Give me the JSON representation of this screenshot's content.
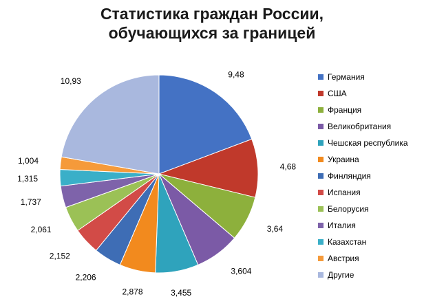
{
  "chart_data": {
    "type": "pie",
    "title_lines": [
      "Статистика граждан России,",
      "обучающихся за границей"
    ],
    "categories": [
      "Германия",
      "США",
      "Франция",
      "Великобритания",
      "Чешская республика",
      "Украина",
      "Финляндия",
      "Испания",
      "Белорусия",
      "Италия",
      "Казахстан",
      "Австрия",
      "Другие"
    ],
    "values": [
      9.48,
      4.68,
      3.64,
      3.604,
      3.455,
      2.878,
      2.206,
      2.152,
      2.061,
      1.737,
      1.315,
      1.004,
      10.93
    ],
    "value_labels": [
      "9,48",
      "4,68",
      "3,64",
      "3,604",
      "3,455",
      "2,878",
      "2,206",
      "2,152",
      "2,061",
      "1,737",
      "1,315",
      "1,004",
      "10,93"
    ],
    "colors": [
      "#4472C4",
      "#C0392B",
      "#8DB03C",
      "#7B5AA6",
      "#2FA3BC",
      "#F28A1E",
      "#3E6DB5",
      "#D24B47",
      "#9BC156",
      "#7E63AA",
      "#3AAFC8",
      "#F59A3A",
      "#A9B8DE"
    ],
    "legend_position": "right",
    "start_angle": "12 o'clock",
    "direction": "clockwise"
  }
}
